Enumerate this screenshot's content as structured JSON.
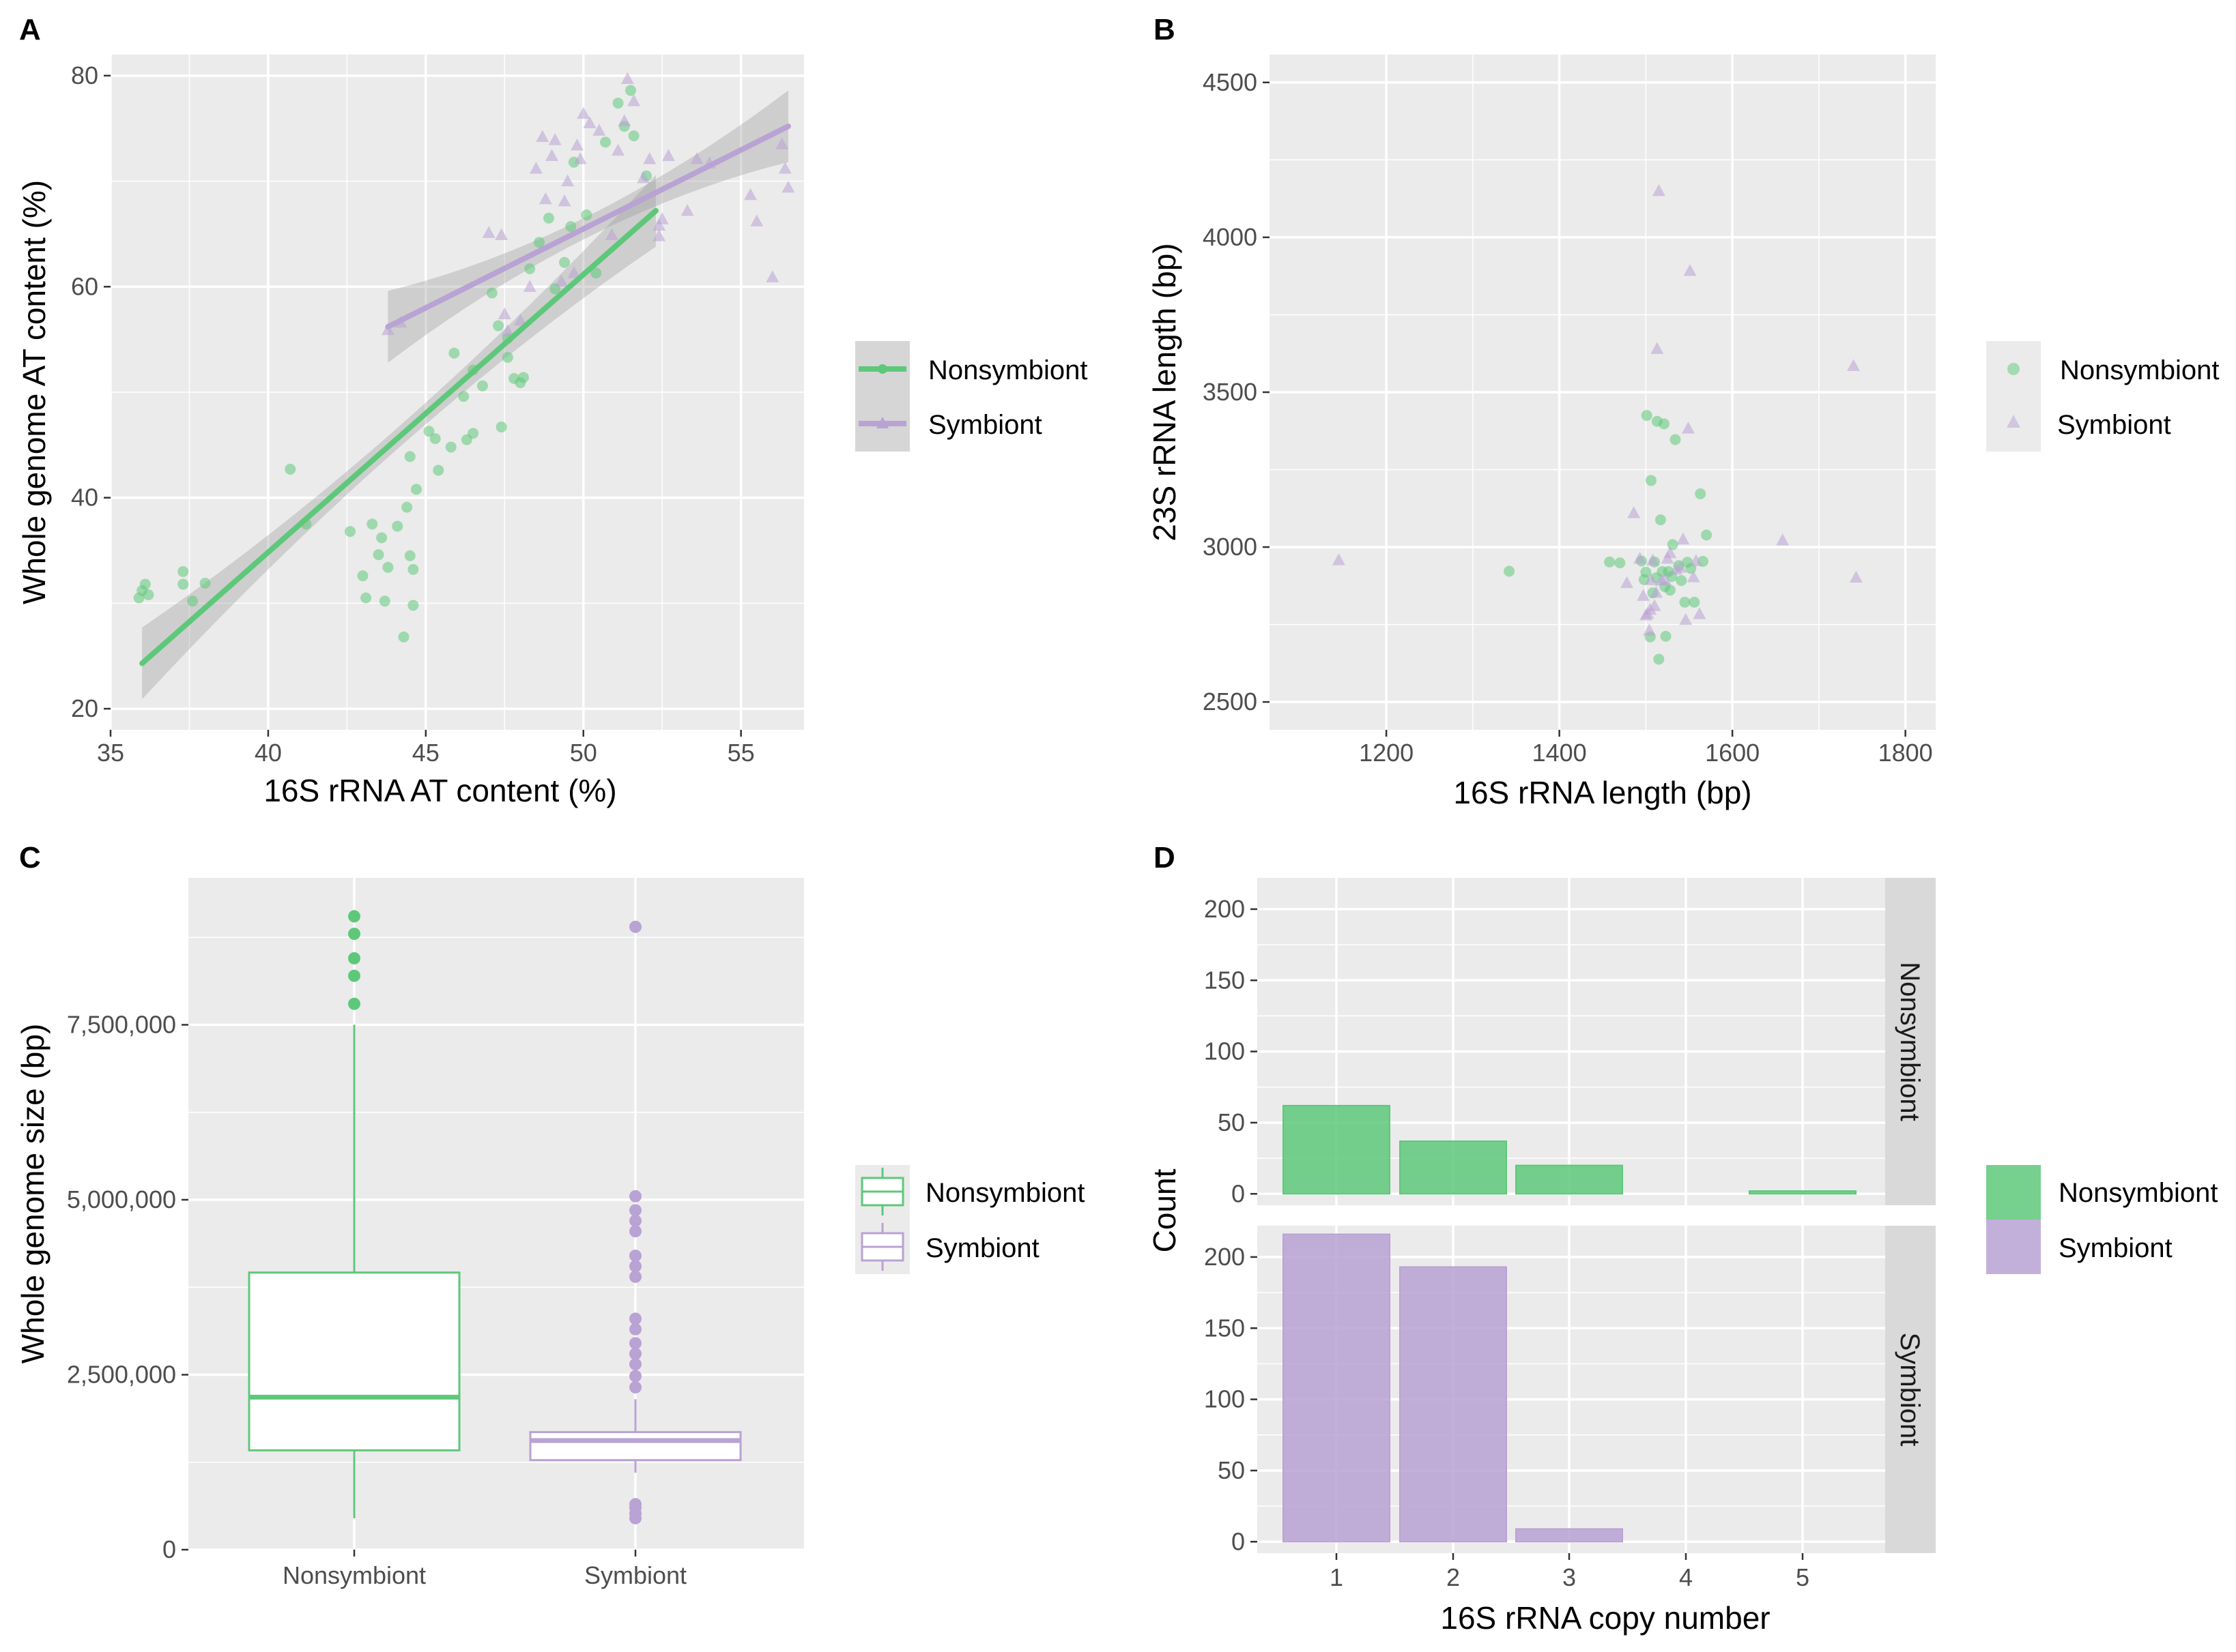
{
  "colors": {
    "nonsymbiont": "#5ec87a",
    "symbiont": "#b9a2d4",
    "panel_bg": "#ebebeb",
    "grid": "#ffffff",
    "ribbon": "#999999",
    "strip_bg": "#d9d9d9"
  },
  "legend": {
    "items": [
      "Nonsymbiont",
      "Symbiont"
    ]
  },
  "chart_data": [
    {
      "panel": "A",
      "type": "scatter",
      "xlabel": "16S rRNA AT content (%)",
      "ylabel": "Whole genome AT content (%)",
      "xlim": [
        35,
        57
      ],
      "ylim": [
        18,
        82
      ],
      "xticks": [
        35,
        40,
        45,
        50,
        55
      ],
      "yticks": [
        20,
        40,
        60,
        80
      ],
      "grid": true,
      "series": [
        {
          "name": "Nonsymbiont",
          "marker": "circle",
          "points": [
            [
              35.9,
              30.5
            ],
            [
              36,
              31.2
            ],
            [
              36.1,
              31.8
            ],
            [
              36.2,
              30.8
            ],
            [
              37.3,
              33
            ],
            [
              37.3,
              31.8
            ],
            [
              37.6,
              30.2
            ],
            [
              38,
              31.9
            ],
            [
              40.7,
              42.7
            ],
            [
              41.2,
              37.5
            ],
            [
              42.6,
              36.8
            ],
            [
              43,
              32.6
            ],
            [
              43.1,
              30.5
            ],
            [
              43.3,
              37.5
            ],
            [
              43.6,
              36.2
            ],
            [
              43.5,
              34.6
            ],
            [
              43.7,
              30.2
            ],
            [
              43.8,
              33.4
            ],
            [
              44.1,
              37.3
            ],
            [
              44.3,
              26.8
            ],
            [
              44.6,
              33.2
            ],
            [
              44.4,
              39.1
            ],
            [
              44.5,
              43.9
            ],
            [
              44.6,
              29.8
            ],
            [
              44.5,
              34.5
            ],
            [
              44.7,
              40.8
            ],
            [
              45.1,
              46.3
            ],
            [
              45.3,
              45.6
            ],
            [
              45.4,
              42.6
            ],
            [
              45.8,
              44.8
            ],
            [
              45.9,
              53.7
            ],
            [
              46.2,
              49.6
            ],
            [
              46.3,
              45.5
            ],
            [
              46.5,
              52.1
            ],
            [
              46.5,
              46.1
            ],
            [
              46.8,
              50.6
            ],
            [
              47.1,
              59.4
            ],
            [
              47.3,
              56.3
            ],
            [
              47.4,
              46.7
            ],
            [
              47.6,
              55.1
            ],
            [
              47.6,
              53.3
            ],
            [
              47.8,
              51.3
            ],
            [
              48.0,
              50.9
            ],
            [
              48.1,
              51.4
            ],
            [
              48.3,
              61.7
            ],
            [
              48.6,
              64.2
            ],
            [
              48.9,
              66.5
            ],
            [
              49.1,
              59.8
            ],
            [
              49.4,
              62.3
            ],
            [
              49.6,
              65.7
            ],
            [
              49.7,
              71.8
            ],
            [
              50.1,
              66.8
            ],
            [
              50.4,
              61.3
            ],
            [
              50.7,
              73.7
            ],
            [
              51.1,
              77.4
            ],
            [
              51.3,
              75.2
            ],
            [
              51.5,
              78.6
            ],
            [
              51.6,
              74.3
            ],
            [
              52.0,
              70.5
            ]
          ]
        },
        {
          "name": "Symbiont",
          "marker": "triangle",
          "points": [
            [
              43.8,
              55.9
            ],
            [
              44.2,
              56.6
            ],
            [
              47.0,
              65.1
            ],
            [
              47.4,
              64.9
            ],
            [
              47.6,
              55.8
            ],
            [
              47.5,
              57.4
            ],
            [
              48.0,
              56.8
            ],
            [
              48.3,
              60.0
            ],
            [
              48.5,
              71.2
            ],
            [
              48.7,
              74.2
            ],
            [
              48.8,
              68.3
            ],
            [
              49.0,
              72.4
            ],
            [
              49.1,
              73.9
            ],
            [
              49.3,
              60.5
            ],
            [
              49.4,
              68.1
            ],
            [
              49.5,
              70.0
            ],
            [
              49.7,
              61.3
            ],
            [
              49.8,
              73.4
            ],
            [
              49.9,
              72.1
            ],
            [
              50.0,
              76.4
            ],
            [
              50.2,
              75.5
            ],
            [
              50.5,
              74.8
            ],
            [
              50.9,
              64.9
            ],
            [
              51.1,
              72.9
            ],
            [
              51.3,
              75.7
            ],
            [
              51.4,
              79.7
            ],
            [
              51.6,
              77.6
            ],
            [
              51.9,
              70.3
            ],
            [
              52.1,
              72.1
            ],
            [
              52.4,
              65.8
            ],
            [
              52.4,
              64.8
            ],
            [
              52.5,
              66.4
            ],
            [
              52.7,
              72.4
            ],
            [
              53.3,
              67.2
            ],
            [
              53.6,
              72.1
            ],
            [
              54.0,
              71.7
            ],
            [
              55.3,
              68.7
            ],
            [
              55.5,
              66.2
            ],
            [
              56.0,
              60.9
            ],
            [
              56.3,
              73.5
            ],
            [
              56.4,
              71.2
            ],
            [
              56.5,
              69.4
            ]
          ]
        }
      ],
      "fits": [
        {
          "name": "Nonsymbiont",
          "x": [
            36,
            52.3
          ],
          "y": [
            24.3,
            67.2
          ]
        },
        {
          "name": "Symbiont",
          "x": [
            43.8,
            56.5
          ],
          "y": [
            56.2,
            75.2
          ]
        }
      ]
    },
    {
      "panel": "B",
      "type": "scatter",
      "xlabel": "16S rRNA length (bp)",
      "ylabel": "23S rRNA length (bp)",
      "xlim": [
        1065,
        1835
      ],
      "ylim": [
        2410,
        4590
      ],
      "xticks": [
        1200,
        1400,
        1600,
        1800
      ],
      "yticks": [
        2500,
        3000,
        3500,
        4000,
        4500
      ],
      "grid": true,
      "series": [
        {
          "name": "Nonsymbiont",
          "marker": "circle",
          "points": [
            [
              1342,
              2922
            ],
            [
              1458,
              2952
            ],
            [
              1470,
              2949
            ],
            [
              1495,
              2955
            ],
            [
              1498,
              2895
            ],
            [
              1500,
              2919
            ],
            [
              1501,
              3425
            ],
            [
              1505,
              2710
            ],
            [
              1506,
              3215
            ],
            [
              1508,
              2852
            ],
            [
              1510,
              2952
            ],
            [
              1512,
              2901
            ],
            [
              1513,
              3406
            ],
            [
              1515,
              2638
            ],
            [
              1517,
              3088
            ],
            [
              1519,
              2921
            ],
            [
              1521,
              3398
            ],
            [
              1522,
              2872
            ],
            [
              1523,
              2712
            ],
            [
              1526,
              2921
            ],
            [
              1528,
              2861
            ],
            [
              1530,
              2905
            ],
            [
              1531,
              3008
            ],
            [
              1534,
              3347
            ],
            [
              1538,
              2940
            ],
            [
              1541,
              2892
            ],
            [
              1545,
              2822
            ],
            [
              1548,
              2951
            ],
            [
              1552,
              2931
            ],
            [
              1556,
              2822
            ],
            [
              1563,
              3172
            ],
            [
              1566,
              2954
            ],
            [
              1570,
              3039
            ]
          ]
        },
        {
          "name": "Symbiont",
          "marker": "triangle",
          "points": [
            [
              1145,
              2958
            ],
            [
              1478,
              2884
            ],
            [
              1486,
              3110
            ],
            [
              1493,
              2963
            ],
            [
              1497,
              2843
            ],
            [
              1500,
              2780
            ],
            [
              1502,
              2785
            ],
            [
              1504,
              2731
            ],
            [
              1505,
              2798
            ],
            [
              1506,
              2894
            ],
            [
              1508,
              2957
            ],
            [
              1510,
              2810
            ],
            [
              1512,
              2853
            ],
            [
              1513,
              3640
            ],
            [
              1515,
              4150
            ],
            [
              1518,
              2892
            ],
            [
              1522,
              2895
            ],
            [
              1525,
              2963
            ],
            [
              1528,
              2981
            ],
            [
              1535,
              2928
            ],
            [
              1540,
              2934
            ],
            [
              1543,
              3025
            ],
            [
              1546,
              2765
            ],
            [
              1549,
              3383
            ],
            [
              1551,
              3892
            ],
            [
              1555,
              2903
            ],
            [
              1558,
              2955
            ],
            [
              1562,
              2784
            ],
            [
              1658,
              3022
            ],
            [
              1740,
              3585
            ],
            [
              1743,
              2902
            ]
          ]
        }
      ]
    },
    {
      "panel": "C",
      "type": "box",
      "xlabel": "",
      "ylabel": "Whole genome size  (bp)",
      "ylim": [
        0,
        9600000
      ],
      "yticks": [
        0,
        2500000,
        5000000,
        7500000
      ],
      "ytick_labels": [
        "0",
        "2,500,000",
        "5,000,000",
        "7,500,000"
      ],
      "categories": [
        "Nonsymbiont",
        "Symbiont"
      ],
      "boxes": [
        {
          "name": "Nonsymbiont",
          "min": 450000,
          "q1": 1420000,
          "median": 2180000,
          "q3": 3960000,
          "max": 7500000,
          "outliers": [
            7800000,
            8200000,
            8450000,
            8800000,
            9050000
          ]
        },
        {
          "name": "Symbiont",
          "min": 1100000,
          "q1": 1280000,
          "median": 1560000,
          "q3": 1680000,
          "max": 2150000,
          "outliers": [
            450000,
            520000,
            600000,
            650000,
            2320000,
            2480000,
            2650000,
            2800000,
            2950000,
            3150000,
            3300000,
            3900000,
            4050000,
            4200000,
            4550000,
            4700000,
            4850000,
            5050000,
            8900000
          ]
        }
      ]
    },
    {
      "panel": "D",
      "type": "bar",
      "xlabel": "16S rRNA copy number",
      "ylabel": "Count",
      "categories": [
        "1",
        "2",
        "3",
        "4",
        "5"
      ],
      "ylim": [
        -8,
        222
      ],
      "yticks": [
        0,
        50,
        100,
        150,
        200
      ],
      "facets": [
        {
          "name": "Nonsymbiont",
          "values": [
            62,
            37,
            20,
            0,
            2
          ]
        },
        {
          "name": "Symbiont",
          "values": [
            216,
            193,
            9,
            0,
            0
          ]
        }
      ]
    }
  ]
}
